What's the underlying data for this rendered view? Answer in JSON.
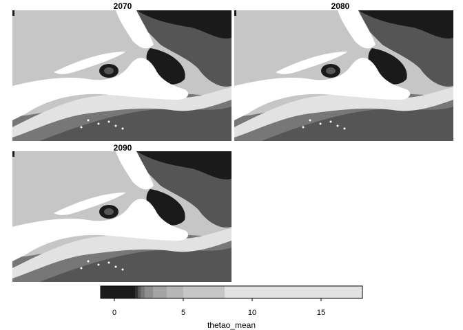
{
  "panels": [
    {
      "title": "2070"
    },
    {
      "title": "2080"
    },
    {
      "title": "2090"
    }
  ],
  "legend": {
    "title": "thetao_mean",
    "ticks": [
      "0",
      "5",
      "10",
      "15"
    ],
    "tick_values": [
      0,
      5,
      10,
      15
    ],
    "range": [
      -1,
      18
    ],
    "bins": [
      {
        "from": -1,
        "to": 1.5,
        "color": "#1a1a1a"
      },
      {
        "from": 1.5,
        "to": 1.7,
        "color": "#333333"
      },
      {
        "from": 1.7,
        "to": 1.9,
        "color": "#555555"
      },
      {
        "from": 1.9,
        "to": 2.2,
        "color": "#777777"
      },
      {
        "from": 2.2,
        "to": 2.8,
        "color": "#8e8e8e"
      },
      {
        "from": 2.8,
        "to": 3.8,
        "color": "#a4a4a4"
      },
      {
        "from": 3.8,
        "to": 5.0,
        "color": "#b6b6b6"
      },
      {
        "from": 5.0,
        "to": 8.0,
        "color": "#c6c6c6"
      },
      {
        "from": 8.0,
        "to": 18.0,
        "color": "#e2e2e2"
      }
    ]
  },
  "colors": {
    "land": "#ffffff",
    "cold": "#1a1a1a",
    "deep_water": "#555555",
    "mid_water": "#777777",
    "shelf_water": "#9a9a9a",
    "warm_water": "#c6c6c6",
    "warmest_water": "#e2e2e2"
  }
}
